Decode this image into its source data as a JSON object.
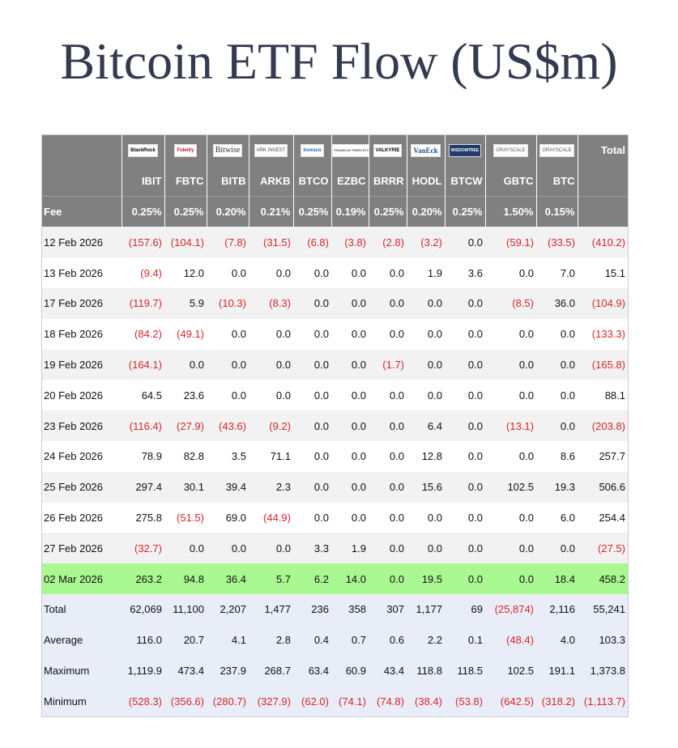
{
  "header": {
    "title": "Bitcoin ETF Flow (US$m)"
  },
  "table": {
    "logos": [
      "BlackRock",
      "Fidelity",
      "Bitwise",
      "ARK INVEST",
      "Invesco",
      "FRANKLIN TEMPLETON",
      "VALKYRIE",
      "VanEck",
      "WISDOMTREE",
      "GRAYSCALE",
      "GRAYSCALE"
    ],
    "total_label": "Total",
    "tickers": [
      "IBIT",
      "FBTC",
      "BITB",
      "ARKB",
      "BTCO",
      "EZBC",
      "BRRR",
      "HODL",
      "BTCW",
      "GBTC",
      "BTC"
    ],
    "fee_label": "Fee",
    "fees": [
      "0.25%",
      "0.25%",
      "0.20%",
      "0.21%",
      "0.25%",
      "0.19%",
      "0.25%",
      "0.20%",
      "0.25%",
      "1.50%",
      "0.15%"
    ],
    "rows": [
      [
        "12 Feb 2026",
        "(157.6)",
        "(104.1)",
        "(7.8)",
        "(31.5)",
        "(6.8)",
        "(3.8)",
        "(2.8)",
        "(3.2)",
        "0.0",
        "(59.1)",
        "(33.5)",
        "(410.2)"
      ],
      [
        "13 Feb 2026",
        "(9.4)",
        "12.0",
        "0.0",
        "0.0",
        "0.0",
        "0.0",
        "0.0",
        "1.9",
        "3.6",
        "0.0",
        "7.0",
        "15.1"
      ],
      [
        "17 Feb 2026",
        "(119.7)",
        "5.9",
        "(10.3)",
        "(8.3)",
        "0.0",
        "0.0",
        "0.0",
        "0.0",
        "0.0",
        "(8.5)",
        "36.0",
        "(104.9)"
      ],
      [
        "18 Feb 2026",
        "(84.2)",
        "(49.1)",
        "0.0",
        "0.0",
        "0.0",
        "0.0",
        "0.0",
        "0.0",
        "0.0",
        "0.0",
        "0.0",
        "(133.3)"
      ],
      [
        "19 Feb 2026",
        "(164.1)",
        "0.0",
        "0.0",
        "0.0",
        "0.0",
        "0.0",
        "(1.7)",
        "0.0",
        "0.0",
        "0.0",
        "0.0",
        "(165.8)"
      ],
      [
        "20 Feb 2026",
        "64.5",
        "23.6",
        "0.0",
        "0.0",
        "0.0",
        "0.0",
        "0.0",
        "0.0",
        "0.0",
        "0.0",
        "0.0",
        "88.1"
      ],
      [
        "23 Feb 2026",
        "(116.4)",
        "(27.9)",
        "(43.6)",
        "(9.2)",
        "0.0",
        "0.0",
        "0.0",
        "6.4",
        "0.0",
        "(13.1)",
        "0.0",
        "(203.8)"
      ],
      [
        "24 Feb 2026",
        "78.9",
        "82.8",
        "3.5",
        "71.1",
        "0.0",
        "0.0",
        "0.0",
        "12.8",
        "0.0",
        "0.0",
        "8.6",
        "257.7"
      ],
      [
        "25 Feb 2026",
        "297.4",
        "30.1",
        "39.4",
        "2.3",
        "0.0",
        "0.0",
        "0.0",
        "15.6",
        "0.0",
        "102.5",
        "19.3",
        "506.6"
      ],
      [
        "26 Feb 2026",
        "275.8",
        "(51.5)",
        "69.0",
        "(44.9)",
        "0.0",
        "0.0",
        "0.0",
        "0.0",
        "0.0",
        "0.0",
        "6.0",
        "254.4"
      ],
      [
        "27 Feb 2026",
        "(32.7)",
        "0.0",
        "0.0",
        "0.0",
        "3.3",
        "1.9",
        "0.0",
        "0.0",
        "0.0",
        "0.0",
        "0.0",
        "(27.5)"
      ],
      [
        "02 Mar 2026",
        "263.2",
        "94.8",
        "36.4",
        "5.7",
        "6.2",
        "14.0",
        "0.0",
        "19.5",
        "0.0",
        "0.0",
        "18.4",
        "458.2"
      ]
    ],
    "stats": [
      [
        "Total",
        "62,069",
        "11,100",
        "2,207",
        "1,477",
        "236",
        "358",
        "307",
        "1,177",
        "69",
        "(25,874)",
        "2,116",
        "55,241"
      ],
      [
        "Average",
        "116.0",
        "20.7",
        "4.1",
        "2.8",
        "0.4",
        "0.7",
        "0.6",
        "2.2",
        "0.1",
        "(48.4)",
        "4.0",
        "103.3"
      ],
      [
        "Maximum",
        "1,119.9",
        "473.4",
        "237.9",
        "268.7",
        "63.4",
        "60.9",
        "43.4",
        "118.8",
        "118.5",
        "102.5",
        "191.1",
        "1,373.8"
      ],
      [
        "Minimum",
        "(528.3)",
        "(356.6)",
        "(280.7)",
        "(327.9)",
        "(62.0)",
        "(74.1)",
        "(74.8)",
        "(38.4)",
        "(53.8)",
        "(642.5)",
        "(318.2)",
        "(1,113.7)"
      ]
    ]
  }
}
